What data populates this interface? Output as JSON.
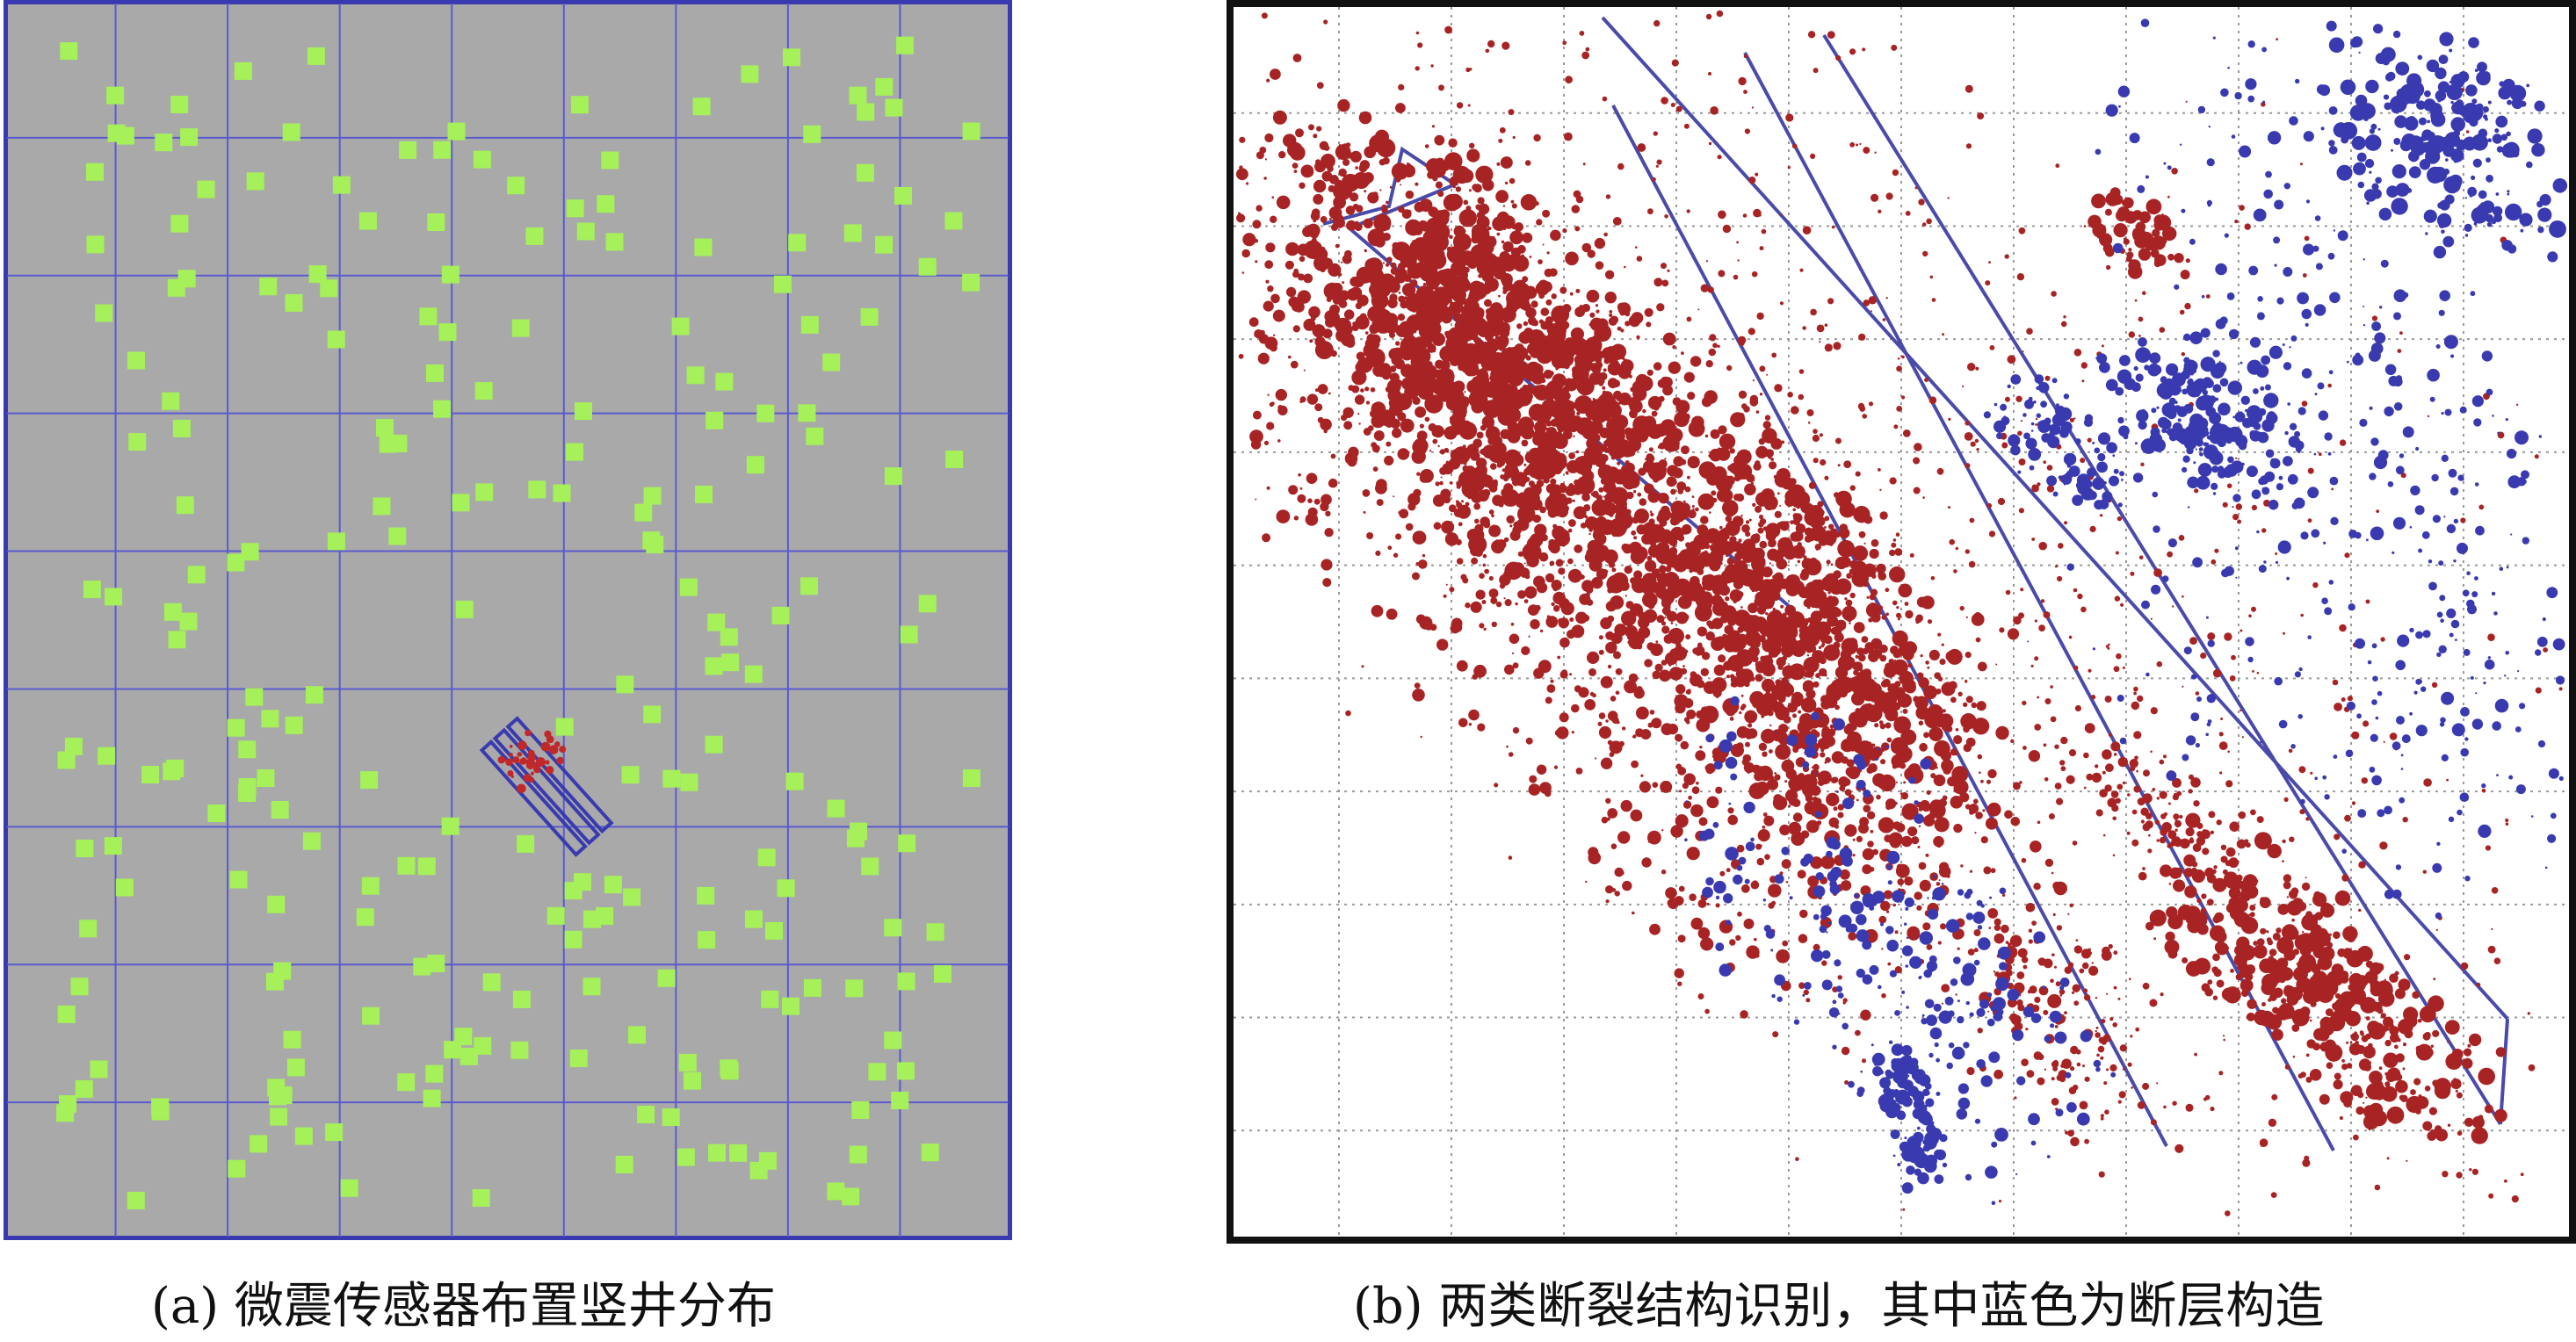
{
  "figure": {
    "panel_a": {
      "caption": "(a) 微震传感器布置竖井分布",
      "colors": {
        "background": "#a9a9a9",
        "frame": "#3a3ab0",
        "grid": "#5a5ad0",
        "sensor": "#a6f05a",
        "event": "#c0282a"
      }
    },
    "panel_b": {
      "caption": "(b) 两类断裂结构识别，其中蓝色为断层构造",
      "colors": {
        "background": "#ffffff",
        "frame": "#111111",
        "grid": "#999999",
        "fracture": "#a82424",
        "fault": "#3a3ab0",
        "outline": "#4a4aaa"
      }
    }
  }
}
